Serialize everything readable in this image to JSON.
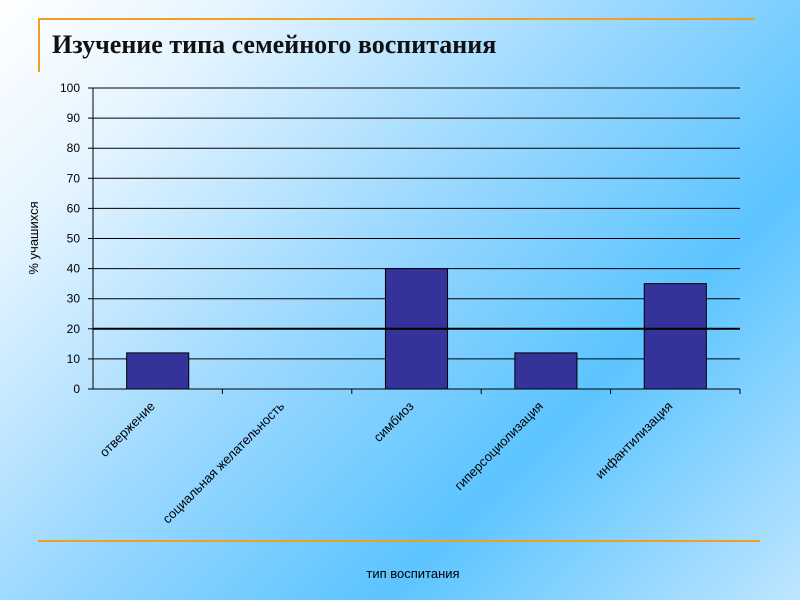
{
  "slide_title": "Изучение типа семейного воспитания",
  "chart_data": {
    "type": "bar",
    "categories": [
      "отвержение",
      "социальная желательность",
      "симбиоз",
      "гиперсоциолизация",
      "инфантилизация"
    ],
    "values": [
      12,
      0,
      40,
      12,
      35
    ],
    "ylabel": "% учашихся",
    "xlabel": "тип воспитания",
    "ylim": [
      0,
      100
    ],
    "yticks": [
      0,
      10,
      20,
      30,
      40,
      50,
      60,
      70,
      80,
      90,
      100
    ],
    "grid": true,
    "legend": "none",
    "bar_color": "#333399",
    "reference_line": 20
  }
}
